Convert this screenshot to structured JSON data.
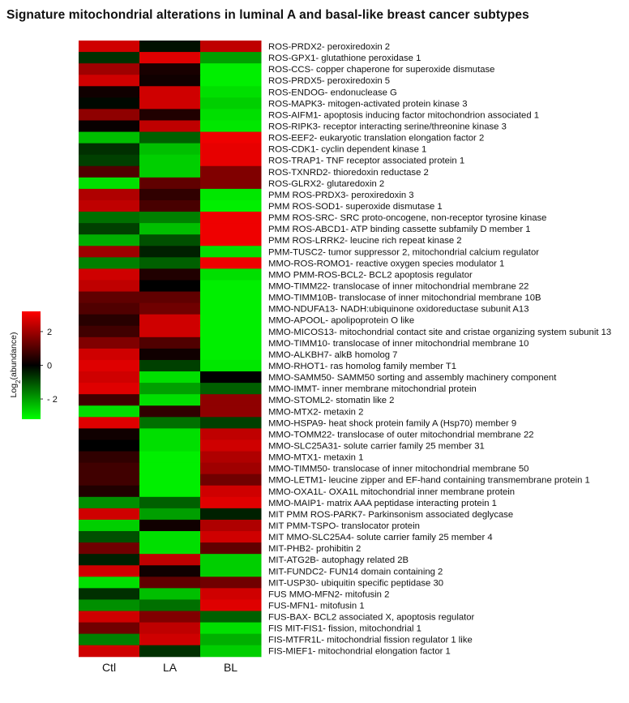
{
  "chart_data": {
    "type": "heatmap",
    "title": "Signature mitochondrial alterations in luminal A and basal-like breast cancer subtypes",
    "columns": [
      "Ctl",
      "LA",
      "BL"
    ],
    "legend_title": "Log2(abundance)",
    "legend_ticks": [
      2,
      0,
      -2
    ],
    "value_range": [
      -3.2,
      3.2
    ],
    "color_low": "#00ff00",
    "color_mid": "#000000",
    "color_high": "#ff0000",
    "rows": [
      {
        "label": "ROS-PRDX2- peroxiredoxin 2",
        "values": [
          2.6,
          -0.2,
          2.4
        ]
      },
      {
        "label": "ROS-GPX1- glutathione peroxidase 1",
        "values": [
          -0.6,
          2.8,
          -2.0
        ]
      },
      {
        "label": "ROS-CCS- copper chaperone for superoxide dismutase",
        "values": [
          2.0,
          0.3,
          -3.0
        ]
      },
      {
        "label": "ROS-PRDX5- peroxiredoxin 5",
        "values": [
          2.6,
          0.2,
          -3.0
        ]
      },
      {
        "label": "ROS-ENDOG- endonuclease G",
        "values": [
          0.2,
          2.6,
          -2.8
        ]
      },
      {
        "label": "ROS-MAPK3- mitogen-activated protein kinase 3",
        "values": [
          -0.1,
          2.6,
          -2.6
        ]
      },
      {
        "label": "ROS-AIFM1- apoptosis inducing factor mitochondrion associated 1",
        "values": [
          1.8,
          0.4,
          -2.8
        ]
      },
      {
        "label": "ROS-RIPK3- receptor interacting serine/threonine kinase 3",
        "values": [
          0.1,
          2.4,
          -2.9
        ]
      },
      {
        "label": "ROS-EEF2- eukaryotic translation elongation factor 2",
        "values": [
          -2.4,
          -1.2,
          3.0
        ]
      },
      {
        "label": "ROS-CDK1- cyclin dependent kinase 1",
        "values": [
          -0.6,
          -2.4,
          2.9
        ]
      },
      {
        "label": "ROS-TRAP1- TNF receptor associated protein 1",
        "values": [
          -0.8,
          -2.6,
          2.9
        ]
      },
      {
        "label": "ROS-TXNRD2- thioredoxin reductase 2",
        "values": [
          1.0,
          -2.6,
          1.6
        ]
      },
      {
        "label": "ROS-GLRX2- glutaredoxin 2",
        "values": [
          -2.8,
          1.2,
          1.6
        ]
      },
      {
        "label": "PMM ROS-PRDX3- peroxiredoxin 3",
        "values": [
          2.2,
          0.6,
          -2.9
        ]
      },
      {
        "label": "PMM ROS-SOD1- superoxide dismutase 1",
        "values": [
          2.4,
          0.9,
          -3.0
        ]
      },
      {
        "label": "PMM ROS-SRC- SRC proto-oncogene, non-receptor tyrosine kinase",
        "values": [
          -1.4,
          -1.6,
          3.0
        ]
      },
      {
        "label": "PMM ROS-ABCD1- ATP binding cassette subfamily D member 1",
        "values": [
          -0.8,
          -2.4,
          3.0
        ]
      },
      {
        "label": "PMM ROS-LRRK2- leucine rich repeat kinase 2",
        "values": [
          -2.2,
          -1.0,
          3.0
        ]
      },
      {
        "label": "PMM-TUSC2- tumor suppressor 2, mitochondrial calcium regulator",
        "values": [
          2.0,
          -0.4,
          -2.8
        ]
      },
      {
        "label": "MMO-ROS-ROMO1- reactive oxygen species modulator 1",
        "values": [
          -1.6,
          -1.2,
          3.0
        ]
      },
      {
        "label": "MMO PMM-ROS-BCL2- BCL2 apoptosis regulator",
        "values": [
          2.6,
          0.4,
          -2.8
        ]
      },
      {
        "label": "MMO-TIMM22- translocase of inner mitochondrial membrane 22",
        "values": [
          2.4,
          0.0,
          -3.0
        ]
      },
      {
        "label": "MMO-TIMM10B- translocase of inner mitochondrial membrane 10B",
        "values": [
          1.2,
          1.2,
          -3.0
        ]
      },
      {
        "label": "MMO-NDUFA13- NADH:ubiquinone oxidoreductase subunit A13",
        "values": [
          1.0,
          1.4,
          -3.0
        ]
      },
      {
        "label": "MMO-APOOL- apolipoprotein O like",
        "values": [
          0.5,
          2.6,
          -3.0
        ]
      },
      {
        "label": "MMO-MICOS13- mitochondrial contact site and cristae organizing system subunit 13",
        "values": [
          0.8,
          2.6,
          -3.0
        ]
      },
      {
        "label": "MMO-TIMM10- translocase of inner mitochondrial membrane 10",
        "values": [
          1.6,
          1.0,
          -3.0
        ]
      },
      {
        "label": "MMO-ALKBH7- alkB homolog 7",
        "values": [
          2.6,
          0.2,
          -3.0
        ]
      },
      {
        "label": "MMO-RHOT1- ras homolog family member T1",
        "values": [
          2.8,
          -0.8,
          -2.9
        ]
      },
      {
        "label": "MMO-SAMM50- SAMM50 sorting and assembly machinery component",
        "values": [
          2.6,
          -2.8,
          0.0
        ]
      },
      {
        "label": "MMO-IMMT- inner membrane mitochondrial protein",
        "values": [
          2.8,
          -2.0,
          -1.2
        ]
      },
      {
        "label": "MMO-STOML2- stomatin like 2",
        "values": [
          0.8,
          -2.8,
          1.8
        ]
      },
      {
        "label": "MMO-MTX2- metaxin 2",
        "values": [
          -2.8,
          0.6,
          1.8
        ]
      },
      {
        "label": "MMO-HSPA9- heat shock protein family A (Hsp70) member 9",
        "values": [
          2.8,
          -1.4,
          -0.8
        ]
      },
      {
        "label": "MMO-TOMM22- translocase of outer mitochondrial membrane 22",
        "values": [
          0.2,
          -2.8,
          2.4
        ]
      },
      {
        "label": "MMO-SLC25A31- solute carrier family 25 member 31",
        "values": [
          0.0,
          -2.8,
          2.6
        ]
      },
      {
        "label": "MMO-MTX1- metaxin 1",
        "values": [
          0.6,
          -3.0,
          2.2
        ]
      },
      {
        "label": "MMO-TIMM50- translocase of inner mitochondrial membrane 50",
        "values": [
          0.8,
          -3.0,
          2.0
        ]
      },
      {
        "label": "MMO-LETM1- leucine zipper and EF-hand containing transmembrane protein 1",
        "values": [
          0.8,
          -3.0,
          1.4
        ]
      },
      {
        "label": "MMO-OXA1L- OXA1L mitochondrial inner membrane protein",
        "values": [
          0.4,
          -3.0,
          2.6
        ]
      },
      {
        "label": "MMO-MAIP1- matrix AAA peptidase interacting protein 1",
        "values": [
          -1.8,
          -1.2,
          2.8
        ]
      },
      {
        "label": "MIT PMM ROS-PARK7- Parkinsonism associated deglycase",
        "values": [
          2.6,
          -2.0,
          -0.4
        ]
      },
      {
        "label": "MIT PMM-TSPO- translocator protein",
        "values": [
          -2.6,
          0.2,
          2.2
        ]
      },
      {
        "label": "MIT MMO-SLC25A4- solute carrier family 25 member 4",
        "values": [
          -1.0,
          -2.8,
          2.6
        ]
      },
      {
        "label": "MIT-PHB2- prohibitin 2",
        "values": [
          1.4,
          -2.8,
          1.2
        ]
      },
      {
        "label": "MIT-ATG2B- autophagy related 2B",
        "values": [
          -0.4,
          2.4,
          -2.6
        ]
      },
      {
        "label": "MIT-FUNDC2- FUN14 domain containing 2",
        "values": [
          2.6,
          0.2,
          -2.6
        ]
      },
      {
        "label": "MIT-USP30- ubiquitin specific peptidase 30",
        "values": [
          -2.8,
          1.2,
          1.4
        ]
      },
      {
        "label": "FUS MMO-MFN2- mitofusin 2",
        "values": [
          -0.6,
          -2.4,
          2.6
        ]
      },
      {
        "label": "FUS-MFN1- mitofusin 1",
        "values": [
          -1.8,
          -1.4,
          2.8
        ]
      },
      {
        "label": "FUS-BAX- BCL2 associated X, apoptosis regulator",
        "values": [
          2.6,
          1.6,
          -1.2
        ]
      },
      {
        "label": "FIS MIT-FIS1- fission, mitochondrial 1",
        "values": [
          1.4,
          2.4,
          -2.8
        ]
      },
      {
        "label": "FIS-MTFR1L- mitochondrial fission regulator 1 like",
        "values": [
          -1.6,
          2.6,
          -2.2
        ]
      },
      {
        "label": "FIS-MIEF1- mitochondrial elongation factor 1",
        "values": [
          2.6,
          -0.6,
          -2.6
        ]
      }
    ]
  }
}
